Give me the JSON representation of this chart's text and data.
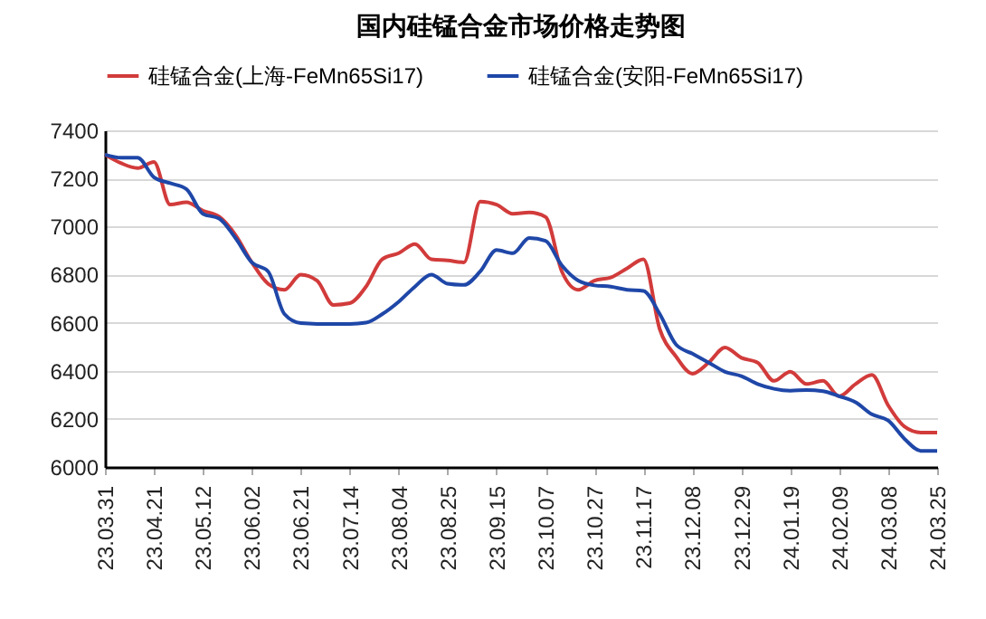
{
  "chart_data": {
    "type": "line",
    "title": "国内硅锰合金市场价格走势图",
    "categories": [
      "23.03.31",
      null,
      null,
      "23.04.21",
      null,
      null,
      "23.05.12",
      null,
      null,
      "23.06.02",
      null,
      null,
      "23.06.21",
      null,
      null,
      "23.07.14",
      null,
      null,
      "23.08.04",
      null,
      null,
      "23.08.25",
      null,
      null,
      "23.09.15",
      null,
      null,
      "23.10.07",
      null,
      null,
      "23.10.27",
      null,
      null,
      "23.11.17",
      null,
      null,
      "23.12.08",
      null,
      null,
      "23.12.29",
      null,
      null,
      "24.01.19",
      null,
      null,
      "24.02.09",
      null,
      null,
      "24.03.08",
      null,
      null,
      "24.03.25"
    ],
    "series": [
      {
        "name": "硅锰合金(上海-FeMn65Si17)",
        "color": "#d23b3b",
        "values": [
          7299,
          7263,
          7243,
          7268,
          7091,
          7101,
          7066,
          7041,
          6965,
          6851,
          6762,
          6737,
          6800,
          6775,
          6674,
          6681,
          6750,
          6864,
          6889,
          6927,
          6864,
          6859,
          6851,
          7104,
          7091,
          7053,
          7058,
          7040,
          6813,
          6737,
          6775,
          6788,
          6826,
          6864,
          6573,
          6459,
          6388,
          6434,
          6497,
          6454,
          6434,
          6358,
          6396,
          6345,
          6358,
          6294,
          6345,
          6383,
          6256,
          6168,
          6143,
          6143
        ]
      },
      {
        "name": "硅锰合金(安阳-FeMn65Si17)",
        "color": "#1f47a8",
        "values": [
          7299,
          7286,
          7286,
          7205,
          7180,
          7155,
          7053,
          7033,
          6952,
          6851,
          6813,
          6636,
          6598,
          6595,
          6595,
          6595,
          6600,
          6636,
          6687,
          6750,
          6800,
          6762,
          6757,
          6813,
          6902,
          6889,
          6952,
          6940,
          6838,
          6775,
          6755,
          6750,
          6737,
          6732,
          6636,
          6509,
          6471,
          6434,
          6396,
          6378,
          6345,
          6325,
          6317,
          6320,
          6315,
          6294,
          6269,
          6219,
          6193,
          6117,
          6067,
          6067
        ]
      }
    ],
    "ylim": [
      6000,
      7400
    ],
    "yticks": [
      6000,
      6200,
      6400,
      6600,
      6800,
      7000,
      7200,
      7400
    ],
    "grid": "y",
    "legend": "top",
    "marker": "none",
    "line_style": "solid"
  }
}
